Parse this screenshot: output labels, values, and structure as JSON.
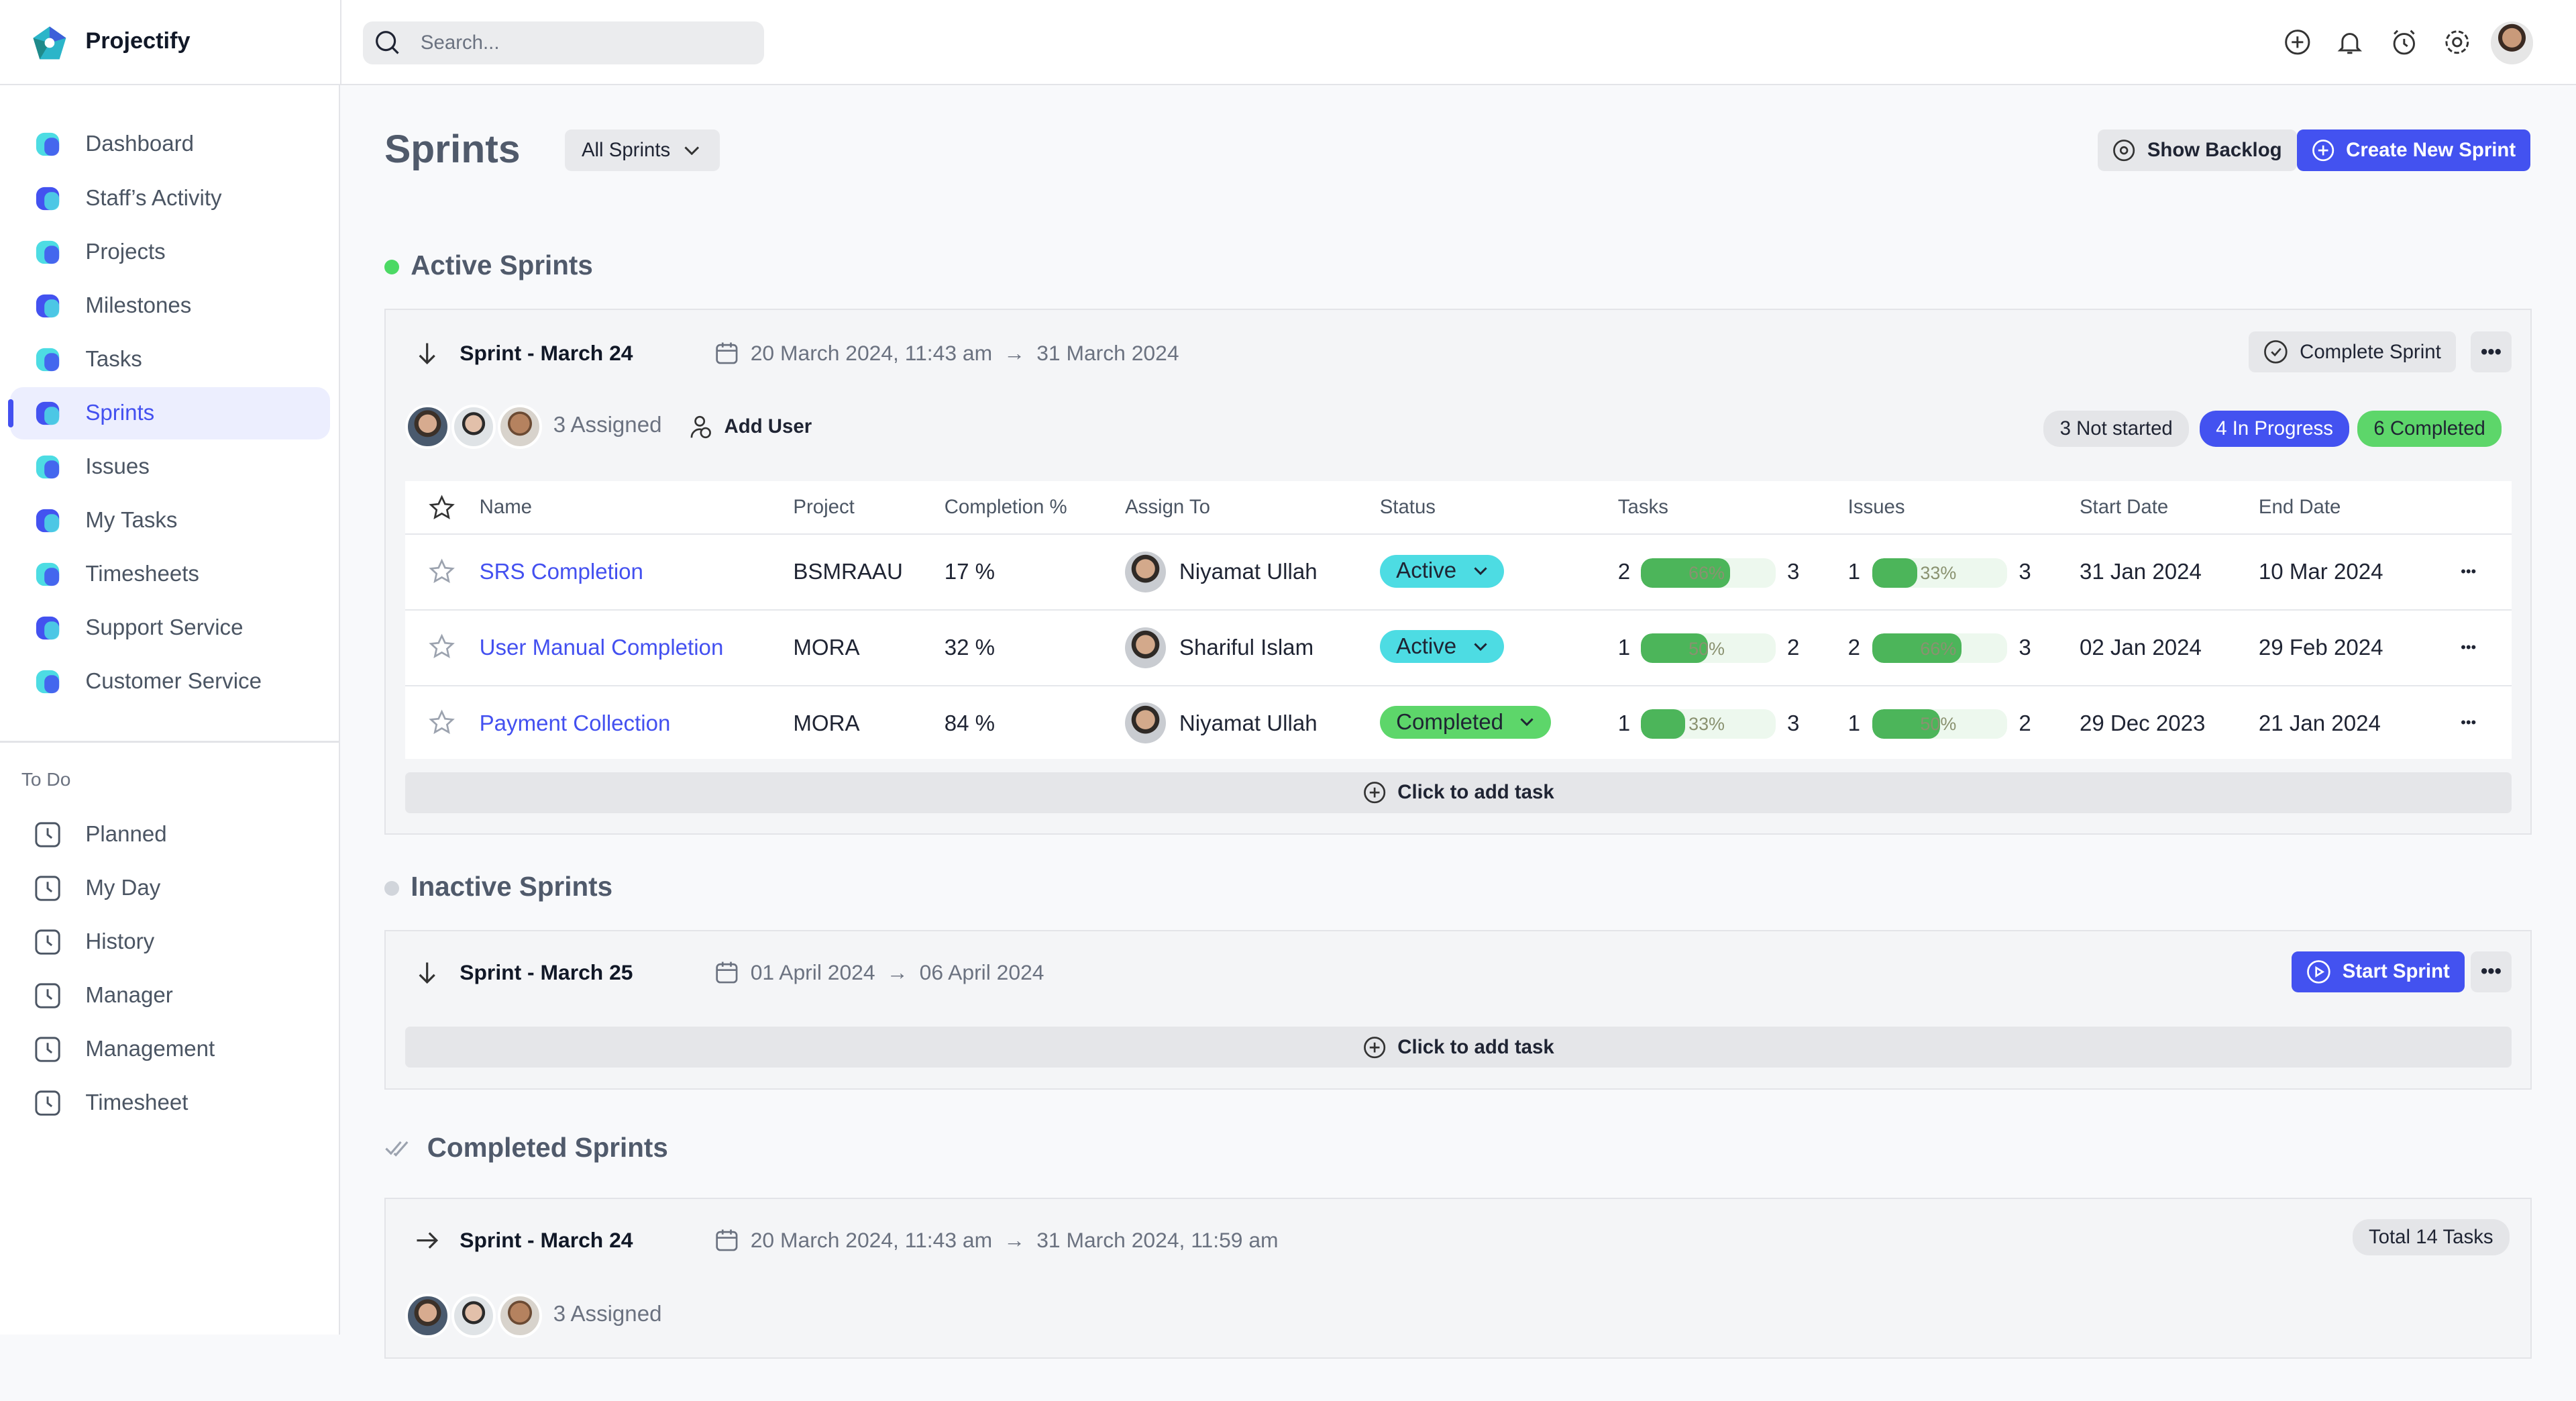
{
  "app": {
    "name": "Projectify"
  },
  "search": {
    "placeholder": "Search..."
  },
  "sidebar": {
    "items": [
      {
        "label": "Dashboard",
        "icon": "dashboard-icon"
      },
      {
        "label": "Staff’s Activity",
        "icon": "activity-icon"
      },
      {
        "label": "Projects",
        "icon": "folder-icon"
      },
      {
        "label": "Milestones",
        "icon": "star-icon"
      },
      {
        "label": "Tasks",
        "icon": "tasks-icon"
      },
      {
        "label": "Sprints",
        "icon": "grid-icon",
        "active": true
      },
      {
        "label": "Issues",
        "icon": "shield-icon"
      },
      {
        "label": "My Tasks",
        "icon": "my-tasks-icon"
      },
      {
        "label": "Timesheets",
        "icon": "calendar-icon"
      },
      {
        "label": "Support Service",
        "icon": "headset-icon"
      },
      {
        "label": "Customer Service",
        "icon": "users-icon"
      }
    ],
    "todo_heading": "To Do",
    "todo_items": [
      {
        "label": "Planned",
        "icon": "calendar-plus-icon"
      },
      {
        "label": "My Day",
        "icon": "check-square-icon"
      },
      {
        "label": "History",
        "icon": "clock-icon"
      },
      {
        "label": "Manager",
        "icon": "user-icon"
      },
      {
        "label": "Management",
        "icon": "user-icon"
      },
      {
        "label": "Timesheet",
        "icon": "clock-square-icon"
      }
    ]
  },
  "page": {
    "title": "Sprints",
    "filter": "All Sprints",
    "show_backlog": "Show Backlog",
    "create_sprint": "Create New Sprint"
  },
  "colors": {
    "accent": "#4352f0",
    "active_dot": "#4cd964",
    "status_active": "#4ddce3",
    "status_completed": "#5dd66a",
    "progress": "#4cb55a"
  },
  "active": {
    "heading": "Active Sprints",
    "sprint": {
      "title": "Sprint - March 24",
      "start": "20 March 2024, 11:43 am",
      "end": "31 March 2024",
      "complete_btn": "Complete Sprint",
      "assigned": "3 Assigned",
      "add_user": "Add User",
      "badges": [
        "3 Not started",
        "4 In Progress",
        "6 Completed"
      ],
      "columns": [
        "Name",
        "Project",
        "Completion %",
        "Assign To",
        "Status",
        "Tasks",
        "Issues",
        "Start Date",
        "End Date"
      ],
      "rows": [
        {
          "name": "SRS Completion",
          "project": "BSMRAAU",
          "completion": "17 %",
          "assignee": "Niyamat Ullah",
          "status": "Active",
          "tasks_done": "2",
          "tasks_pct": 66,
          "tasks_label": "66%",
          "tasks_total": "3",
          "issues_done": "1",
          "issues_pct": 33,
          "issues_label": "33%",
          "issues_total": "3",
          "start": "31 Jan 2024",
          "end": "10 Mar 2024"
        },
        {
          "name": "User Manual Completion",
          "project": "MORA",
          "completion": "32 %",
          "assignee": "Shariful Islam",
          "status": "Active",
          "tasks_done": "1",
          "tasks_pct": 50,
          "tasks_label": "50%",
          "tasks_total": "2",
          "issues_done": "2",
          "issues_pct": 66,
          "issues_label": "66%",
          "issues_total": "3",
          "start": "02 Jan 2024",
          "end": "29 Feb 2024"
        },
        {
          "name": "Payment Collection",
          "project": "MORA",
          "completion": "84 %",
          "assignee": "Niyamat Ullah",
          "status": "Completed",
          "tasks_done": "1",
          "tasks_pct": 33,
          "tasks_label": "33%",
          "tasks_total": "3",
          "issues_done": "1",
          "issues_pct": 50,
          "issues_label": "50%",
          "issues_total": "2",
          "start": "29 Dec 2023",
          "end": "21 Jan 2024"
        }
      ],
      "add_task": "Click to add task"
    }
  },
  "inactive": {
    "heading": "Inactive Sprints",
    "sprint": {
      "title": "Sprint - March 25",
      "start": "01 April 2024",
      "end": "06 April 2024",
      "start_btn": "Start Sprint",
      "add_task": "Click to add task"
    }
  },
  "completed": {
    "heading": "Completed Sprints",
    "sprint": {
      "title": "Sprint - March 24",
      "start": "20 March 2024, 11:43 am",
      "end": "31 March 2024, 11:59 am",
      "total": "Total 14 Tasks",
      "assigned": "3 Assigned"
    }
  }
}
